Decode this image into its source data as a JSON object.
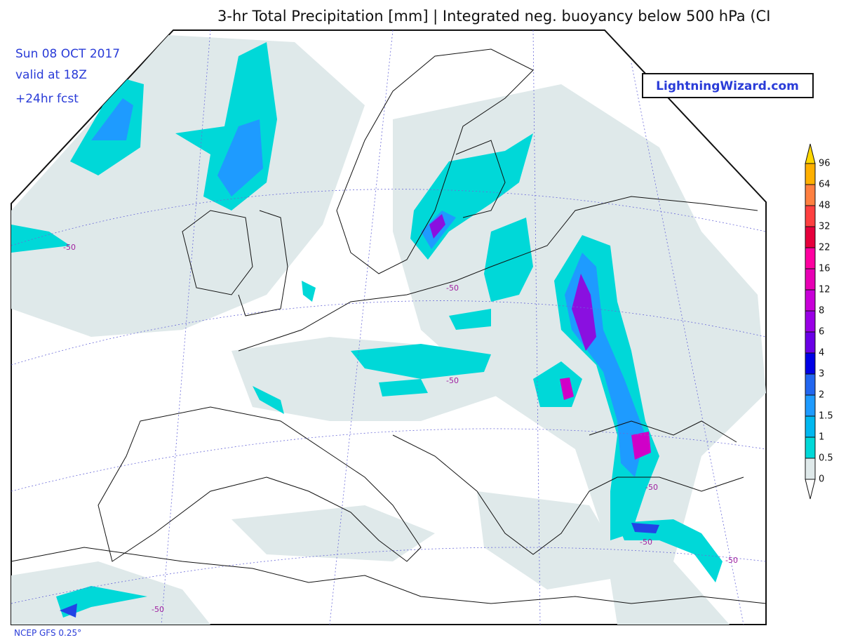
{
  "header": {
    "title": "3-hr Total Precipitation [mm] | Integrated neg. buoyancy below 500 hPa (CI",
    "date": "Sun 08 OCT 2017",
    "valid": "valid at 18Z",
    "forecast": "+24hr fcst",
    "logo": "LightningWizard.com"
  },
  "map": {
    "contour_label": -50
  },
  "colorbar": {
    "ticks": [
      0,
      0.5,
      1,
      1.5,
      2,
      3,
      4,
      6,
      8,
      12,
      16,
      22,
      32,
      48,
      64,
      96
    ],
    "colors": [
      "#ffffff",
      "#dfe9ea",
      "#00d8d8",
      "#00b8f0",
      "#1e9bff",
      "#2266f0",
      "#0000e6",
      "#6a00e6",
      "#9a00e6",
      "#c800d8",
      "#e800b4",
      "#ff00a0",
      "#e6003c",
      "#ff4040",
      "#ff8040",
      "#ffb000",
      "#ffd700"
    ]
  },
  "footer": {
    "model": "NCEP GFS 0.25°"
  }
}
